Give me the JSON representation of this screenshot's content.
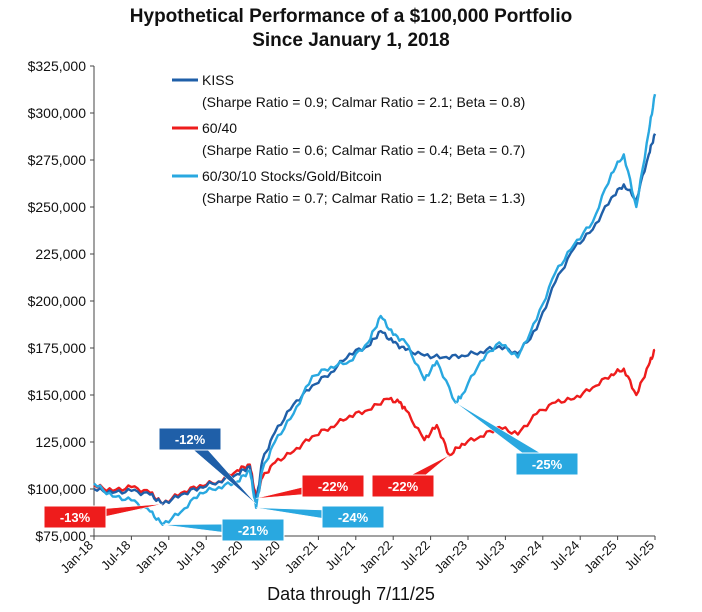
{
  "chart_data": {
    "type": "line",
    "title_lines": [
      "Hypothetical Performance of a $100,000 Portfolio",
      "Since January 1, 2018"
    ],
    "footer": "Data through 7/11/25",
    "xlabel": "",
    "ylabel": "",
    "x_ticks": [
      "Jan-18",
      "Jul-18",
      "Jan-19",
      "Jul-19",
      "Jan-20",
      "Jul-20",
      "Jan-21",
      "Jul-21",
      "Jan-22",
      "Jul-22",
      "Jan-23",
      "Jul-23",
      "Jan-24",
      "Jul-24",
      "Jan-25",
      "Jul-25"
    ],
    "y_ticks": [
      "$75,000",
      "$100,000",
      "125,000",
      "$150,000",
      "$175,000",
      "$200,000",
      "225,000",
      "$250,000",
      "$275,000",
      "$300,000",
      "$325,000"
    ],
    "ylim": [
      75000,
      325000
    ],
    "xlim": [
      "2018-01",
      "2025-07"
    ],
    "grid": false,
    "legend_position": "top-left",
    "colors": {
      "kiss": "#1f5fa8",
      "sixty_forty": "#ee1c1c",
      "stocks_gold_btc": "#29a8e0"
    },
    "series": [
      {
        "name": "KISS",
        "subtitle": "(Sharpe Ratio = 0.9; Calmar Ratio = 2.1; Beta = 0.8)",
        "key": "kiss",
        "points": [
          [
            "2018-01",
            100000
          ],
          [
            "2018-04",
            98000
          ],
          [
            "2018-07",
            99000
          ],
          [
            "2018-10",
            97000
          ],
          [
            "2018-12",
            92000
          ],
          [
            "2019-03",
            97000
          ],
          [
            "2019-06",
            101000
          ],
          [
            "2019-09",
            104000
          ],
          [
            "2019-12",
            108000
          ],
          [
            "2020-02",
            112000
          ],
          [
            "2020-03",
            92000
          ],
          [
            "2020-04",
            115000
          ],
          [
            "2020-06",
            130000
          ],
          [
            "2020-09",
            145000
          ],
          [
            "2020-12",
            155000
          ],
          [
            "2021-03",
            162000
          ],
          [
            "2021-06",
            172000
          ],
          [
            "2021-09",
            176000
          ],
          [
            "2021-11",
            184000
          ],
          [
            "2022-01",
            178000
          ],
          [
            "2022-03",
            174000
          ],
          [
            "2022-06",
            171000
          ],
          [
            "2022-09",
            170000
          ],
          [
            "2022-12",
            171000
          ],
          [
            "2023-03",
            173000
          ],
          [
            "2023-06",
            176000
          ],
          [
            "2023-09",
            172000
          ],
          [
            "2023-12",
            185000
          ],
          [
            "2024-03",
            210000
          ],
          [
            "2024-06",
            228000
          ],
          [
            "2024-09",
            238000
          ],
          [
            "2024-12",
            255000
          ],
          [
            "2025-02",
            262000
          ],
          [
            "2025-04",
            254000
          ],
          [
            "2025-06",
            278000
          ],
          [
            "2025-07",
            289000
          ]
        ]
      },
      {
        "name": "60/40",
        "subtitle": "(Sharpe Ratio = 0.6; Calmar Ratio = 0.4; Beta = 0.7)",
        "key": "sixty_forty",
        "points": [
          [
            "2018-01",
            102000
          ],
          [
            "2018-04",
            99000
          ],
          [
            "2018-07",
            101000
          ],
          [
            "2018-10",
            98000
          ],
          [
            "2018-12",
            92000
          ],
          [
            "2019-03",
            98000
          ],
          [
            "2019-06",
            102000
          ],
          [
            "2019-09",
            104000
          ],
          [
            "2019-12",
            110000
          ],
          [
            "2020-02",
            113000
          ],
          [
            "2020-03",
            95000
          ],
          [
            "2020-04",
            106000
          ],
          [
            "2020-06",
            114000
          ],
          [
            "2020-09",
            120000
          ],
          [
            "2020-12",
            128000
          ],
          [
            "2021-03",
            133000
          ],
          [
            "2021-06",
            139000
          ],
          [
            "2021-09",
            142000
          ],
          [
            "2021-12",
            148000
          ],
          [
            "2022-02",
            146000
          ],
          [
            "2022-03",
            142000
          ],
          [
            "2022-06",
            126000
          ],
          [
            "2022-08",
            134000
          ],
          [
            "2022-10",
            118000
          ],
          [
            "2022-12",
            124000
          ],
          [
            "2023-03",
            128000
          ],
          [
            "2023-06",
            133000
          ],
          [
            "2023-09",
            129000
          ],
          [
            "2023-12",
            140000
          ],
          [
            "2024-03",
            146000
          ],
          [
            "2024-06",
            148000
          ],
          [
            "2024-09",
            154000
          ],
          [
            "2024-12",
            161000
          ],
          [
            "2025-02",
            164000
          ],
          [
            "2025-04",
            150000
          ],
          [
            "2025-06",
            166000
          ],
          [
            "2025-07",
            174000
          ]
        ]
      },
      {
        "name": "60/30/10 Stocks/Gold/Bitcoin",
        "subtitle": "(Sharpe Ratio = 0.7; Calmar Ratio = 1.2; Beta = 1.3)",
        "key": "stocks_gold_btc",
        "points": [
          [
            "2018-01",
            103000
          ],
          [
            "2018-04",
            96000
          ],
          [
            "2018-07",
            94000
          ],
          [
            "2018-10",
            88000
          ],
          [
            "2018-12",
            81000
          ],
          [
            "2019-03",
            88000
          ],
          [
            "2019-06",
            98000
          ],
          [
            "2019-09",
            101000
          ],
          [
            "2019-12",
            104000
          ],
          [
            "2020-02",
            110000
          ],
          [
            "2020-03",
            90000
          ],
          [
            "2020-04",
            110000
          ],
          [
            "2020-06",
            125000
          ],
          [
            "2020-09",
            140000
          ],
          [
            "2020-12",
            160000
          ],
          [
            "2021-03",
            165000
          ],
          [
            "2021-06",
            168000
          ],
          [
            "2021-09",
            178000
          ],
          [
            "2021-11",
            192000
          ],
          [
            "2022-01",
            182000
          ],
          [
            "2022-03",
            178000
          ],
          [
            "2022-06",
            158000
          ],
          [
            "2022-08",
            168000
          ],
          [
            "2022-11",
            146000
          ],
          [
            "2022-12",
            150000
          ],
          [
            "2023-03",
            168000
          ],
          [
            "2023-06",
            178000
          ],
          [
            "2023-09",
            170000
          ],
          [
            "2023-12",
            190000
          ],
          [
            "2024-03",
            215000
          ],
          [
            "2024-06",
            230000
          ],
          [
            "2024-09",
            242000
          ],
          [
            "2024-12",
            268000
          ],
          [
            "2025-02",
            278000
          ],
          [
            "2025-04",
            250000
          ],
          [
            "2025-06",
            290000
          ],
          [
            "2025-07",
            310000
          ]
        ]
      }
    ],
    "annotations": [
      {
        "label": "-13%",
        "color": "#ee1c1c",
        "series": "sixty_forty",
        "date": "2018-12"
      },
      {
        "label": "-21%",
        "color": "#29a8e0",
        "series": "stocks_gold_btc",
        "date": "2018-12"
      },
      {
        "label": "-12%",
        "color": "#1f5fa8",
        "series": "kiss",
        "date": "2020-03"
      },
      {
        "label": "-22%",
        "color": "#ee1c1c",
        "series": "sixty_forty",
        "date": "2020-03"
      },
      {
        "label": "-24%",
        "color": "#29a8e0",
        "series": "stocks_gold_btc",
        "date": "2020-03"
      },
      {
        "label": "-22%",
        "color": "#ee1c1c",
        "series": "sixty_forty",
        "date": "2022-10"
      },
      {
        "label": "-25%",
        "color": "#29a8e0",
        "series": "stocks_gold_btc",
        "date": "2022-11"
      }
    ]
  }
}
